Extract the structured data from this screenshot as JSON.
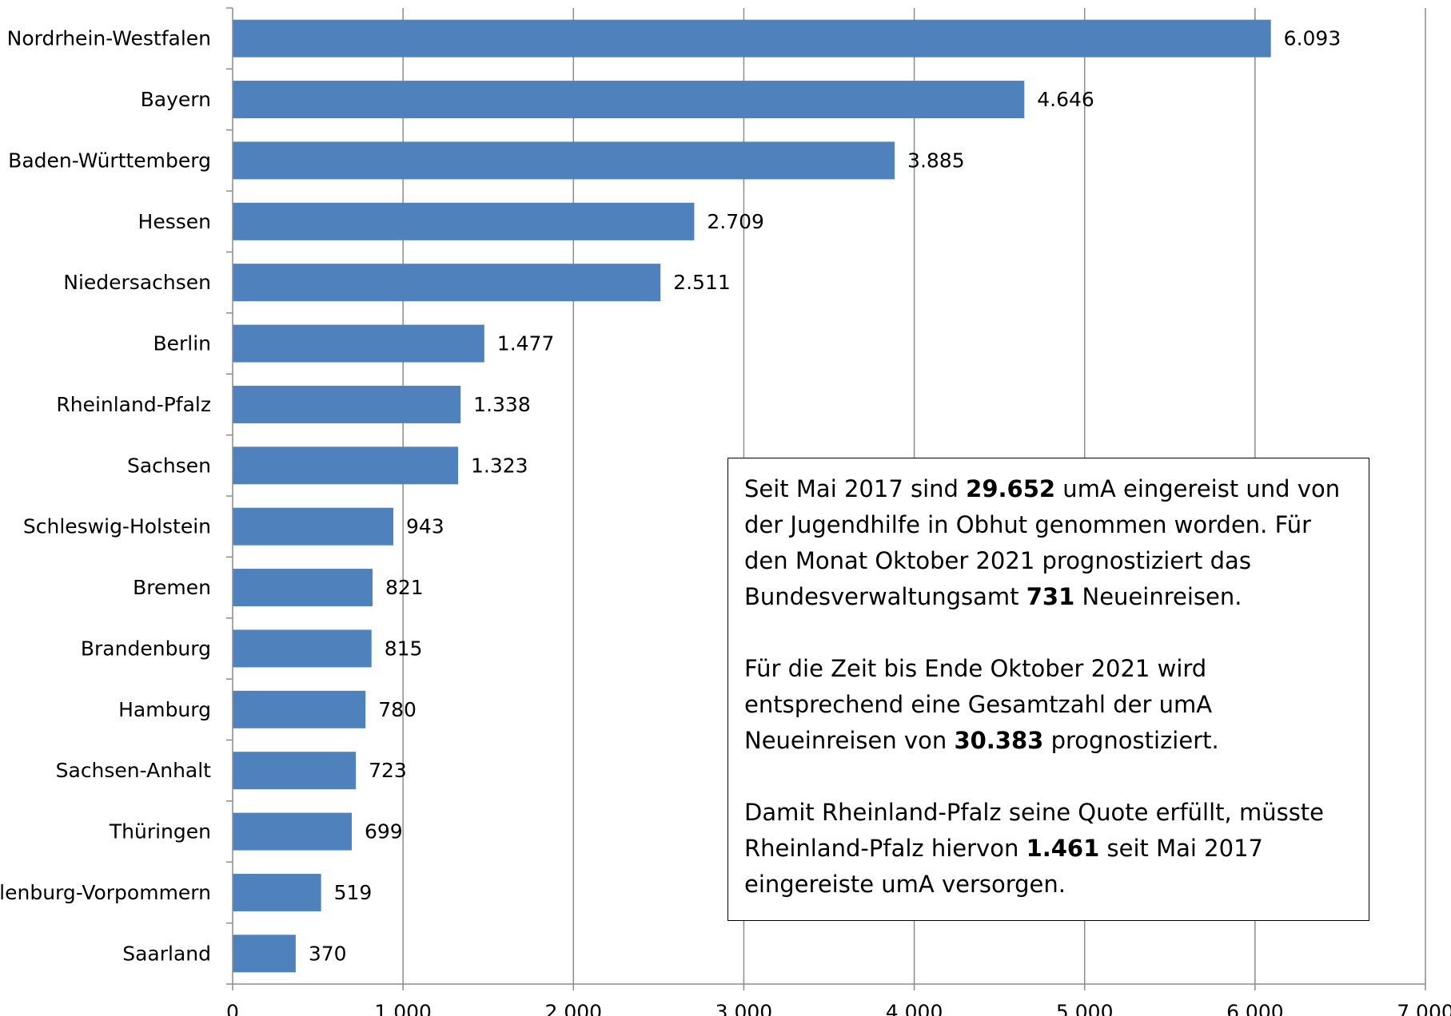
{
  "chart_data": {
    "type": "bar",
    "orientation": "horizontal",
    "categories": [
      "Nordrhein-Westfalen",
      "Bayern",
      "Baden-Württemberg",
      "Hessen",
      "Niedersachsen",
      "Berlin",
      "Rheinland-Pfalz",
      "Sachsen",
      "Schleswig-Holstein",
      "Bremen",
      "Brandenburg",
      "Hamburg",
      "Sachsen-Anhalt",
      "Thüringen",
      "Mecklenburg-Vorpommern",
      "Saarland"
    ],
    "values": [
      6093,
      4646,
      3885,
      2709,
      2511,
      1477,
      1338,
      1323,
      943,
      821,
      815,
      780,
      723,
      699,
      519,
      370
    ],
    "value_labels": [
      "6.093",
      "4.646",
      "3.885",
      "2.709",
      "2.511",
      "1.477",
      "1.338",
      "1.323",
      "943",
      "821",
      "815",
      "780",
      "723",
      "699",
      "519",
      "370"
    ],
    "x_ticks": [
      0,
      1000,
      2000,
      3000,
      4000,
      5000,
      6000,
      7000
    ],
    "x_tick_labels": [
      "0",
      "1.000",
      "2.000",
      "3.000",
      "4.000",
      "5.000",
      "6.000",
      "7.000"
    ],
    "xlim": [
      0,
      7000
    ],
    "grid": "vertical",
    "bar_color": "#4F81BD",
    "grid_color": "#8C8C8C",
    "title": "",
    "xlabel": "",
    "ylabel": ""
  },
  "annotation": {
    "paragraphs": [
      [
        {
          "text": "Seit Mai 2017 sind ",
          "bold": false
        },
        {
          "text": "29.652",
          "bold": true
        },
        {
          "text": " umA eingereist und von der Jugendhilfe in Obhut genommen worden. Für den Monat Oktober 2021 prognostiziert das Bundesverwaltungsamt ",
          "bold": false
        },
        {
          "text": "731",
          "bold": true
        },
        {
          "text": " Neueinreisen.",
          "bold": false
        }
      ],
      [
        {
          "text": "Für die Zeit bis Ende Oktober 2021 wird entsprechend eine Gesamtzahl der umA Neueinreisen von ",
          "bold": false
        },
        {
          "text": "30.383",
          "bold": true
        },
        {
          "text": " prognostiziert.",
          "bold": false
        }
      ],
      [
        {
          "text": "Damit Rheinland-Pfalz seine Quote erfüllt, müsste Rheinland-Pfalz hiervon ",
          "bold": false
        },
        {
          "text": "1.461",
          "bold": true
        },
        {
          "text": " seit Mai 2017 eingereiste umA versorgen.",
          "bold": false
        }
      ]
    ]
  }
}
